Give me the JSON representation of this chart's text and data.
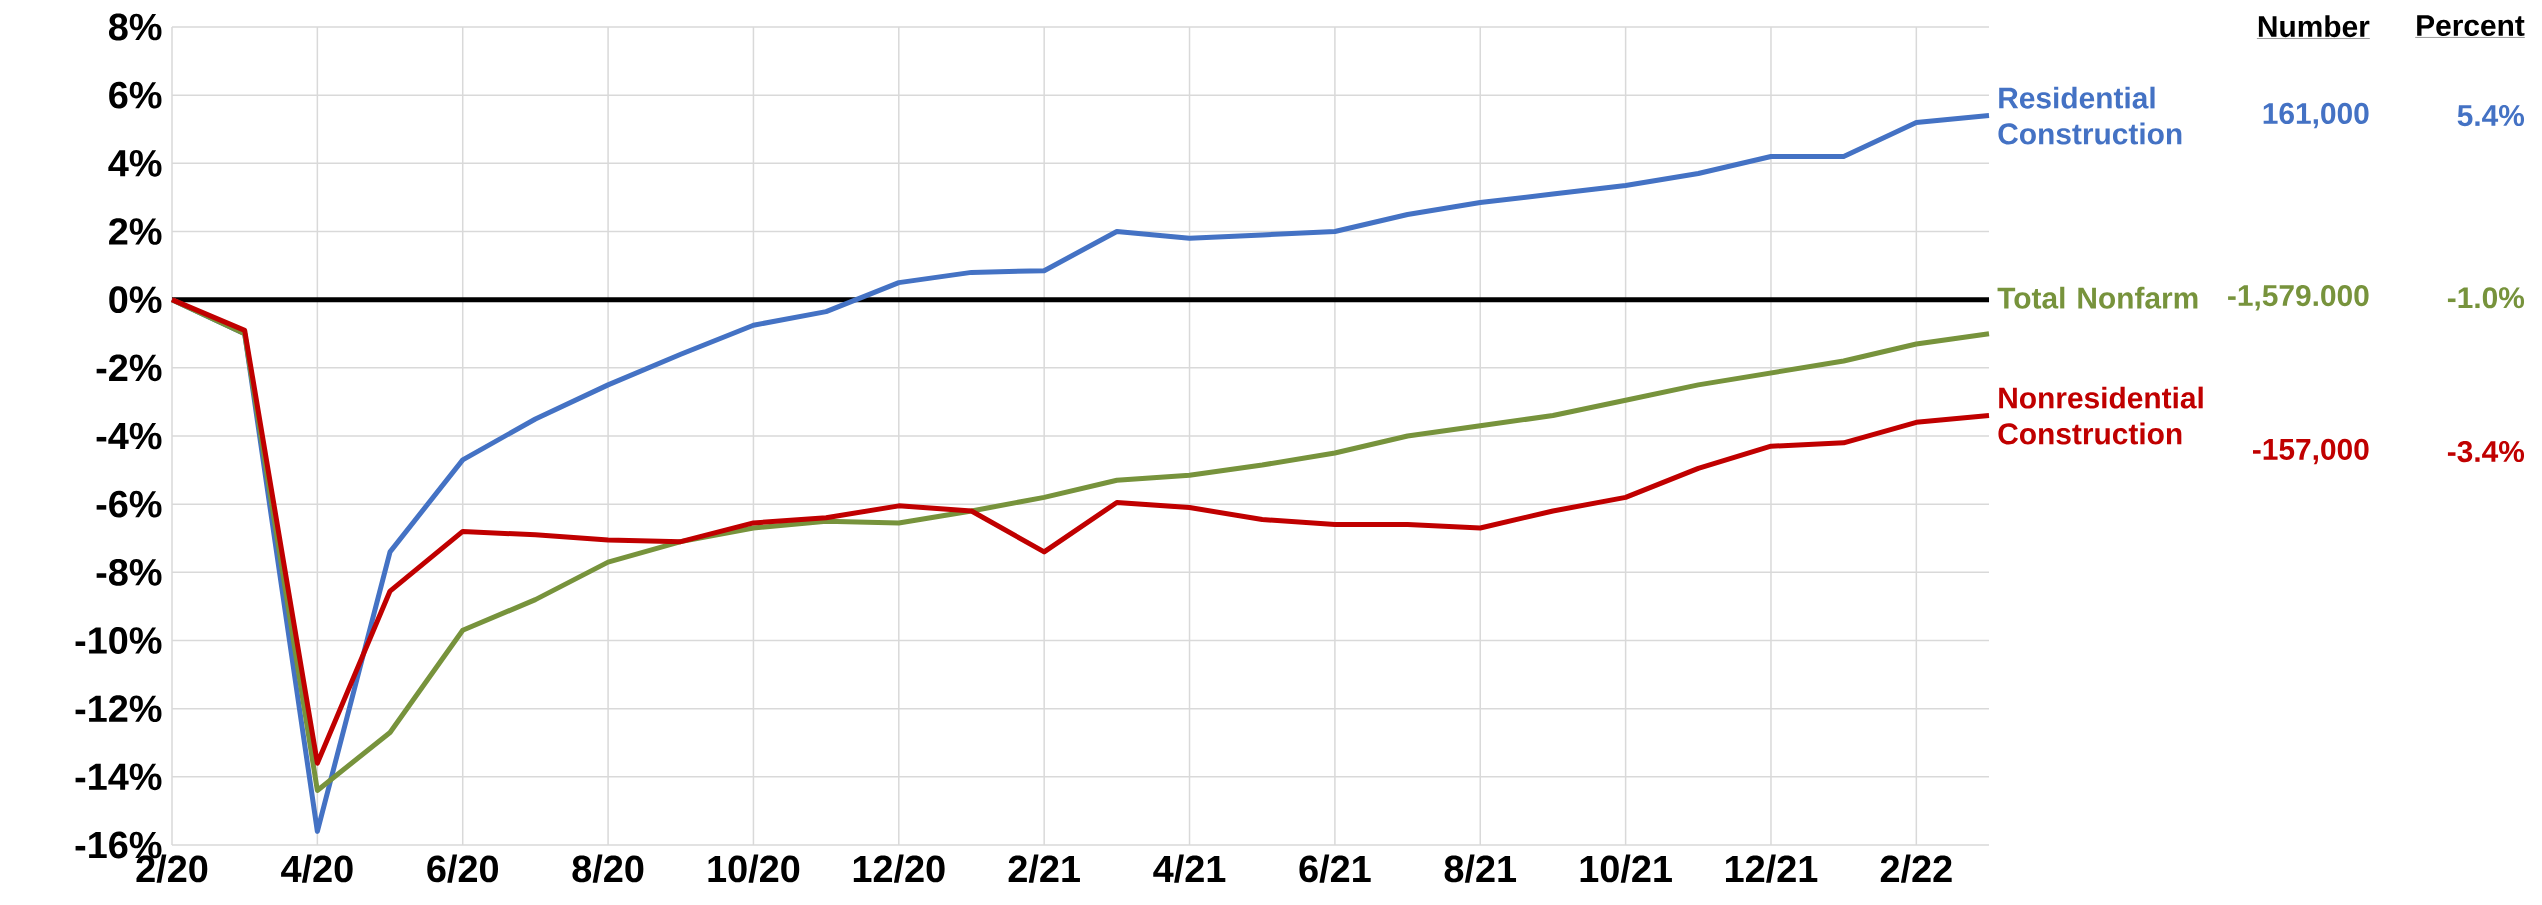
{
  "chart_data": {
    "type": "line",
    "categories": [
      "2/20",
      null,
      "4/20",
      null,
      "6/20",
      null,
      "8/20",
      null,
      "10/20",
      null,
      "12/20",
      null,
      "2/21",
      null,
      "4/21",
      null,
      "6/21",
      null,
      "8/21",
      null,
      "10/21",
      null,
      "12/21",
      null,
      "2/22",
      null
    ],
    "series": [
      {
        "name": "Residential Construction",
        "color": "#4472c4",
        "values": [
          0,
          -1.0,
          -15.6,
          -7.4,
          -4.7,
          -3.5,
          -2.5,
          -1.6,
          -0.75,
          -0.35,
          0.5,
          0.8,
          0.85,
          2.0,
          1.8,
          1.9,
          2.0,
          2.5,
          2.85,
          3.1,
          3.35,
          3.7,
          4.2,
          4.2,
          5.2,
          5.4
        ]
      },
      {
        "name": "Total Nonfarm",
        "color": "#77933c",
        "values": [
          0,
          -1.0,
          -14.4,
          -12.7,
          -9.7,
          -8.8,
          -7.7,
          -7.1,
          -6.7,
          -6.5,
          -6.55,
          -6.2,
          -5.8,
          -5.3,
          -5.15,
          -4.85,
          -4.5,
          -4.0,
          -3.7,
          -3.4,
          -2.95,
          -2.5,
          -2.15,
          -1.8,
          -1.3,
          -1.0
        ]
      },
      {
        "name": "Nonresidential Construction",
        "color": "#c00000",
        "values": [
          0,
          -0.9,
          -13.6,
          -8.55,
          -6.8,
          -6.9,
          -7.05,
          -7.1,
          -6.55,
          -6.4,
          -6.05,
          -6.2,
          -7.4,
          -5.95,
          -6.1,
          -6.45,
          -6.6,
          -6.6,
          -6.7,
          -6.2,
          -5.8,
          -4.95,
          -4.3,
          -4.2,
          -3.6,
          -3.4
        ]
      }
    ],
    "ylim": [
      -16,
      8
    ],
    "yticks": [
      {
        "value": -16,
        "label": "-16%"
      },
      {
        "value": -14,
        "label": "-14%"
      },
      {
        "value": -12,
        "label": "-12%"
      },
      {
        "value": -10,
        "label": "-10%"
      },
      {
        "value": -8,
        "label": "-8%"
      },
      {
        "value": -6,
        "label": "-6%"
      },
      {
        "value": -4,
        "label": "-4%"
      },
      {
        "value": -2,
        "label": "-2%"
      },
      {
        "value": 0,
        "label": "0%"
      },
      {
        "value": 2,
        "label": "2%"
      },
      {
        "value": 4,
        "label": "4%"
      },
      {
        "value": 6,
        "label": "6%"
      },
      {
        "value": 8,
        "label": "8%"
      }
    ],
    "grid": true,
    "ref_lines": [
      {
        "axis": "y",
        "value": 0,
        "color": "#000000"
      }
    ],
    "annotations": [
      "Number",
      "Percent",
      "161,000",
      "5.4%",
      "-1,579.000",
      "-1.0%",
      "-157,000",
      "-3.4%"
    ]
  }
}
